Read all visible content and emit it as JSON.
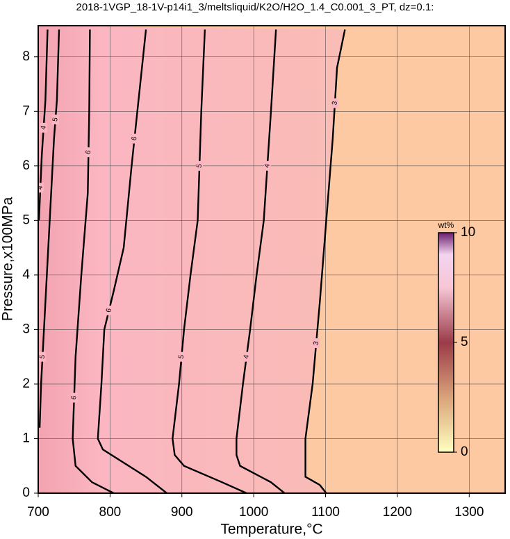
{
  "chart_data": {
    "type": "contour",
    "title": "2018-1VGP_18-1V-p14i1_3/meltsliquid/K2O/H2O_1.4_C0.001_3_PT, dz=0.1:",
    "x_label": "Temperature,°C",
    "y_label": "Pressure,x100MPa",
    "xlim": [
      700,
      1350
    ],
    "ylim": [
      0,
      8.57
    ],
    "xticks": [
      700,
      800,
      900,
      1000,
      1100,
      1200,
      1300
    ],
    "yticks": [
      0,
      1,
      2,
      3,
      4,
      5,
      6,
      7,
      8
    ],
    "grid": true,
    "line_color": "#000000",
    "series": [
      {
        "level": 4,
        "x": [
          713,
          710,
          705,
          701
        ],
        "y": [
          8.5,
          7.2,
          6.2,
          5.0
        ]
      },
      {
        "level": 5,
        "x": [
          729,
          726,
          722,
          714,
          708,
          704,
          702
        ],
        "y": [
          8.5,
          7.2,
          6.5,
          4.5,
          3.0,
          2.0,
          1.2
        ]
      },
      {
        "level": 6,
        "x": [
          772,
          771,
          769,
          760,
          752,
          748,
          752,
          775,
          805
        ],
        "y": [
          8.5,
          7.0,
          5.5,
          4.0,
          2.5,
          1.0,
          0.5,
          0.2,
          0.0
        ]
      },
      {
        "level": 6,
        "x": [
          850,
          838,
          830,
          819,
          805,
          792,
          788,
          783,
          790,
          850,
          879
        ],
        "y": [
          8.5,
          7.0,
          6.0,
          4.5,
          3.7,
          3.0,
          2.0,
          1.0,
          0.8,
          0.3,
          0.0
        ]
      },
      {
        "level": 5,
        "x": [
          932,
          927,
          922,
          912,
          903,
          896,
          887,
          890,
          903,
          956,
          990
        ],
        "y": [
          8.5,
          7.0,
          5.0,
          4.0,
          3.0,
          2.0,
          1.0,
          0.7,
          0.5,
          0.2,
          0.0
        ]
      },
      {
        "level": 4,
        "x": [
          1031,
          1024,
          1014,
          1004,
          995,
          985,
          976,
          976,
          981,
          1024,
          1043
        ],
        "y": [
          8.5,
          7.0,
          5.0,
          4.0,
          3.0,
          2.0,
          1.0,
          0.7,
          0.5,
          0.2,
          0.0
        ]
      },
      {
        "level": 3,
        "x": [
          1127,
          1116,
          1110,
          1101,
          1092,
          1082,
          1072,
          1072,
          1092,
          1101
        ],
        "y": [
          8.5,
          7.8,
          6.5,
          5.0,
          3.5,
          2.0,
          1.0,
          0.3,
          0.15,
          0.0
        ]
      }
    ],
    "colorbar": {
      "label": "wt%",
      "lim": [
        0,
        10
      ],
      "ticks": [
        0,
        5,
        10
      ]
    }
  }
}
